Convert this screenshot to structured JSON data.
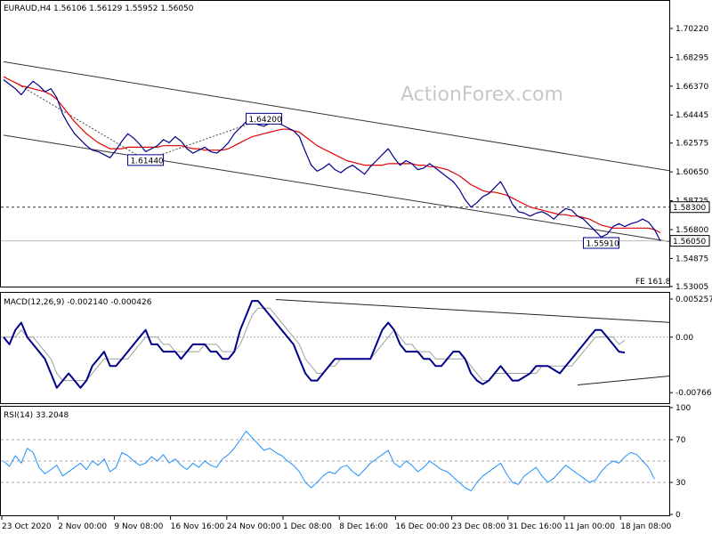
{
  "chart_data": {
    "type": "line",
    "watermark": "ActionForex.com",
    "x_labels": [
      "23 Oct 2020",
      "2 Nov 00:00",
      "9 Nov 08:00",
      "16 Nov 16:00",
      "24 Nov 00:00",
      "1 Dec 08:00",
      "8 Dec 16:00",
      "16 Dec 00:00",
      "23 Dec 08:00",
      "31 Dec 16:00",
      "11 Jan 00:00",
      "18 Jan 08:00"
    ],
    "price_panel": {
      "header": "EURAUD,H4  1.56106 1.56129 1.55952 1.56050",
      "ylim": [
        1.53,
        1.72
      ],
      "y_ticks": [
        "1.70220",
        "1.68295",
        "1.66370",
        "1.64445",
        "1.62575",
        "1.60650",
        "1.58725",
        "1.56800",
        "1.54875",
        "1.53005"
      ],
      "current_price": "1.56050",
      "current_value": 1.5605,
      "level_line": {
        "label": "1.58300",
        "value": 1.583
      },
      "annotations": [
        {
          "text": "1.64200",
          "x": 44,
          "y": 1.642
        },
        {
          "text": "1.61440",
          "x": 24,
          "y": 1.6144
        },
        {
          "text": "1.55910",
          "x": 101,
          "y": 1.5591
        }
      ],
      "fe_label": "FE 161.8",
      "channel_upper": [
        {
          "x": 0,
          "y": 1.68
        },
        {
          "x": 130,
          "y": 1.596
        }
      ],
      "channel_lower": [
        {
          "x": 0,
          "y": 1.631
        },
        {
          "x": 130,
          "y": 1.549
        }
      ],
      "dotted_trend": [
        {
          "x": 2,
          "y": 1.666
        },
        {
          "x": 24,
          "y": 1.6144
        },
        {
          "x": 44,
          "y": 1.642
        }
      ],
      "series": [
        {
          "color": "#00008b",
          "values": [
            1.668,
            1.665,
            1.662,
            1.658,
            1.663,
            1.667,
            1.664,
            1.66,
            1.662,
            1.656,
            1.645,
            1.638,
            1.632,
            1.628,
            1.624,
            1.621,
            1.62,
            1.618,
            1.616,
            1.621,
            1.627,
            1.632,
            1.629,
            1.625,
            1.62,
            1.622,
            1.624,
            1.628,
            1.626,
            1.63,
            1.627,
            1.622,
            1.619,
            1.621,
            1.623,
            1.62,
            1.619,
            1.622,
            1.626,
            1.632,
            1.636,
            1.64,
            1.641,
            1.638,
            1.637,
            1.639,
            1.64,
            1.638,
            1.636,
            1.634,
            1.63,
            1.62,
            1.611,
            1.607,
            1.609,
            1.612,
            1.608,
            1.606,
            1.609,
            1.611,
            1.608,
            1.605,
            1.61,
            1.614,
            1.618,
            1.622,
            1.616,
            1.611,
            1.614,
            1.612,
            1.608,
            1.609,
            1.612,
            1.609,
            1.606,
            1.603,
            1.6,
            1.595,
            1.588,
            1.583,
            1.586,
            1.59,
            1.592,
            1.596,
            1.6,
            1.593,
            1.585,
            1.58,
            1.579,
            1.577,
            1.579,
            1.58,
            1.578,
            1.575,
            1.579,
            1.582,
            1.581,
            1.577,
            1.575,
            1.571,
            1.567,
            1.563,
            1.565,
            1.57,
            1.572,
            1.57,
            1.572,
            1.573,
            1.575,
            1.573,
            1.568,
            1.5605
          ]
        },
        {
          "color": "#e00000",
          "values": [
            1.67,
            1.668,
            1.666,
            1.664,
            1.663,
            1.662,
            1.661,
            1.66,
            1.658,
            1.655,
            1.65,
            1.645,
            1.64,
            1.636,
            1.632,
            1.629,
            1.626,
            1.624,
            1.622,
            1.622,
            1.622,
            1.623,
            1.623,
            1.623,
            1.623,
            1.623,
            1.623,
            1.624,
            1.624,
            1.624,
            1.624,
            1.623,
            1.622,
            1.622,
            1.621,
            1.621,
            1.621,
            1.621,
            1.622,
            1.624,
            1.626,
            1.628,
            1.63,
            1.631,
            1.632,
            1.633,
            1.634,
            1.635,
            1.635,
            1.634,
            1.633,
            1.63,
            1.627,
            1.624,
            1.622,
            1.62,
            1.618,
            1.616,
            1.614,
            1.613,
            1.612,
            1.611,
            1.611,
            1.611,
            1.611,
            1.612,
            1.612,
            1.612,
            1.612,
            1.612,
            1.611,
            1.611,
            1.61,
            1.61,
            1.609,
            1.608,
            1.606,
            1.604,
            1.601,
            1.598,
            1.596,
            1.594,
            1.593,
            1.593,
            1.592,
            1.591,
            1.589,
            1.587,
            1.585,
            1.583,
            1.582,
            1.581,
            1.58,
            1.579,
            1.578,
            1.578,
            1.577,
            1.577,
            1.576,
            1.575,
            1.573,
            1.571,
            1.57,
            1.569,
            1.569,
            1.569,
            1.569,
            1.569,
            1.569,
            1.569,
            1.568,
            1.566
          ]
        }
      ]
    },
    "macd_panel": {
      "header": "MACD(12,26,9) -0.002140 -0.000426",
      "ylim": [
        -0.009,
        0.006
      ],
      "y_ticks": [
        "0.005257",
        "0.00",
        "-0.007663"
      ],
      "trend_upper": [
        {
          "x": 46,
          "y": 0.0052
        },
        {
          "x": 130,
          "y": 0.0012
        }
      ],
      "trend_lower": [
        {
          "x": 97,
          "y": -0.0066
        },
        {
          "x": 130,
          "y": -0.004
        }
      ],
      "series": [
        {
          "color": "#00008b",
          "values": [
            0.0,
            -0.001,
            0.001,
            0.002,
            0.0,
            -0.001,
            -0.002,
            -0.003,
            -0.005,
            -0.007,
            -0.006,
            -0.005,
            -0.006,
            -0.007,
            -0.006,
            -0.004,
            -0.003,
            -0.002,
            -0.004,
            -0.004,
            -0.003,
            -0.002,
            -0.001,
            0.0,
            0.001,
            -0.001,
            -0.001,
            -0.002,
            -0.002,
            -0.002,
            -0.003,
            -0.002,
            -0.001,
            -0.001,
            -0.001,
            -0.002,
            -0.002,
            -0.003,
            -0.003,
            -0.002,
            0.001,
            0.003,
            0.005,
            0.005,
            0.004,
            0.003,
            0.002,
            0.001,
            0.0,
            -0.001,
            -0.003,
            -0.005,
            -0.006,
            -0.006,
            -0.005,
            -0.004,
            -0.003,
            -0.003,
            -0.003,
            -0.003,
            -0.003,
            -0.003,
            -0.003,
            -0.001,
            0.001,
            0.002,
            0.001,
            -0.001,
            -0.002,
            -0.002,
            -0.002,
            -0.003,
            -0.003,
            -0.004,
            -0.004,
            -0.003,
            -0.002,
            -0.002,
            -0.003,
            -0.005,
            -0.006,
            -0.0065,
            -0.006,
            -0.005,
            -0.004,
            -0.005,
            -0.006,
            -0.006,
            -0.0055,
            -0.005,
            -0.004,
            -0.004,
            -0.004,
            -0.0045,
            -0.005,
            -0.004,
            -0.003,
            -0.002,
            -0.001,
            0.0,
            0.001,
            0.001,
            0.0,
            -0.001,
            -0.002,
            -0.00214
          ]
        },
        {
          "color": "#a0a0a0",
          "values": [
            0.0,
            0.0,
            0.0,
            0.001,
            0.0,
            0.0,
            -0.001,
            -0.002,
            -0.003,
            -0.005,
            -0.006,
            -0.006,
            -0.006,
            -0.006,
            -0.006,
            -0.005,
            -0.004,
            -0.003,
            -0.003,
            -0.003,
            -0.003,
            -0.003,
            -0.002,
            -0.001,
            0.0,
            0.0,
            0.0,
            -0.001,
            -0.001,
            -0.002,
            -0.002,
            -0.002,
            -0.002,
            -0.002,
            -0.001,
            -0.001,
            -0.001,
            -0.002,
            -0.002,
            -0.002,
            -0.001,
            0.001,
            0.003,
            0.004,
            0.004,
            0.004,
            0.003,
            0.002,
            0.001,
            0.0,
            -0.001,
            -0.003,
            -0.004,
            -0.005,
            -0.005,
            -0.004,
            -0.004,
            -0.003,
            -0.003,
            -0.003,
            -0.003,
            -0.003,
            -0.003,
            -0.002,
            -0.001,
            0.0,
            0.001,
            0.0,
            -0.001,
            -0.001,
            -0.002,
            -0.002,
            -0.002,
            -0.003,
            -0.003,
            -0.003,
            -0.003,
            -0.003,
            -0.003,
            -0.004,
            -0.005,
            -0.006,
            -0.006,
            -0.005,
            -0.005,
            -0.005,
            -0.005,
            -0.005,
            -0.005,
            -0.005,
            -0.005,
            -0.004,
            -0.004,
            -0.004,
            -0.004,
            -0.004,
            -0.004,
            -0.003,
            -0.002,
            -0.001,
            0.0,
            0.0,
            0.0,
            0.0,
            -0.001,
            -0.000426
          ]
        }
      ]
    },
    "rsi_panel": {
      "header": "RSI(14) 33.2048",
      "ylim": [
        0,
        100
      ],
      "y_ticks": [
        "100",
        "70",
        "30",
        "0"
      ],
      "levels": [
        70,
        50,
        30
      ],
      "series": [
        {
          "color": "#1e90ff",
          "values": [
            50,
            45,
            55,
            48,
            62,
            58,
            44,
            38,
            42,
            46,
            36,
            40,
            44,
            48,
            42,
            50,
            46,
            52,
            40,
            44,
            58,
            55,
            50,
            46,
            48,
            54,
            50,
            56,
            48,
            52,
            46,
            42,
            48,
            44,
            50,
            46,
            44,
            52,
            56,
            62,
            70,
            78,
            72,
            66,
            60,
            62,
            58,
            55,
            50,
            46,
            40,
            30,
            25,
            30,
            36,
            40,
            38,
            44,
            46,
            40,
            36,
            42,
            48,
            52,
            56,
            60,
            48,
            44,
            50,
            46,
            40,
            44,
            50,
            46,
            42,
            40,
            35,
            30,
            25,
            22,
            30,
            36,
            40,
            44,
            48,
            38,
            30,
            28,
            36,
            40,
            44,
            36,
            30,
            34,
            40,
            46,
            42,
            38,
            34,
            30,
            32,
            40,
            46,
            50,
            48,
            54,
            58,
            56,
            50,
            44,
            33.2048
          ]
        }
      ]
    }
  }
}
